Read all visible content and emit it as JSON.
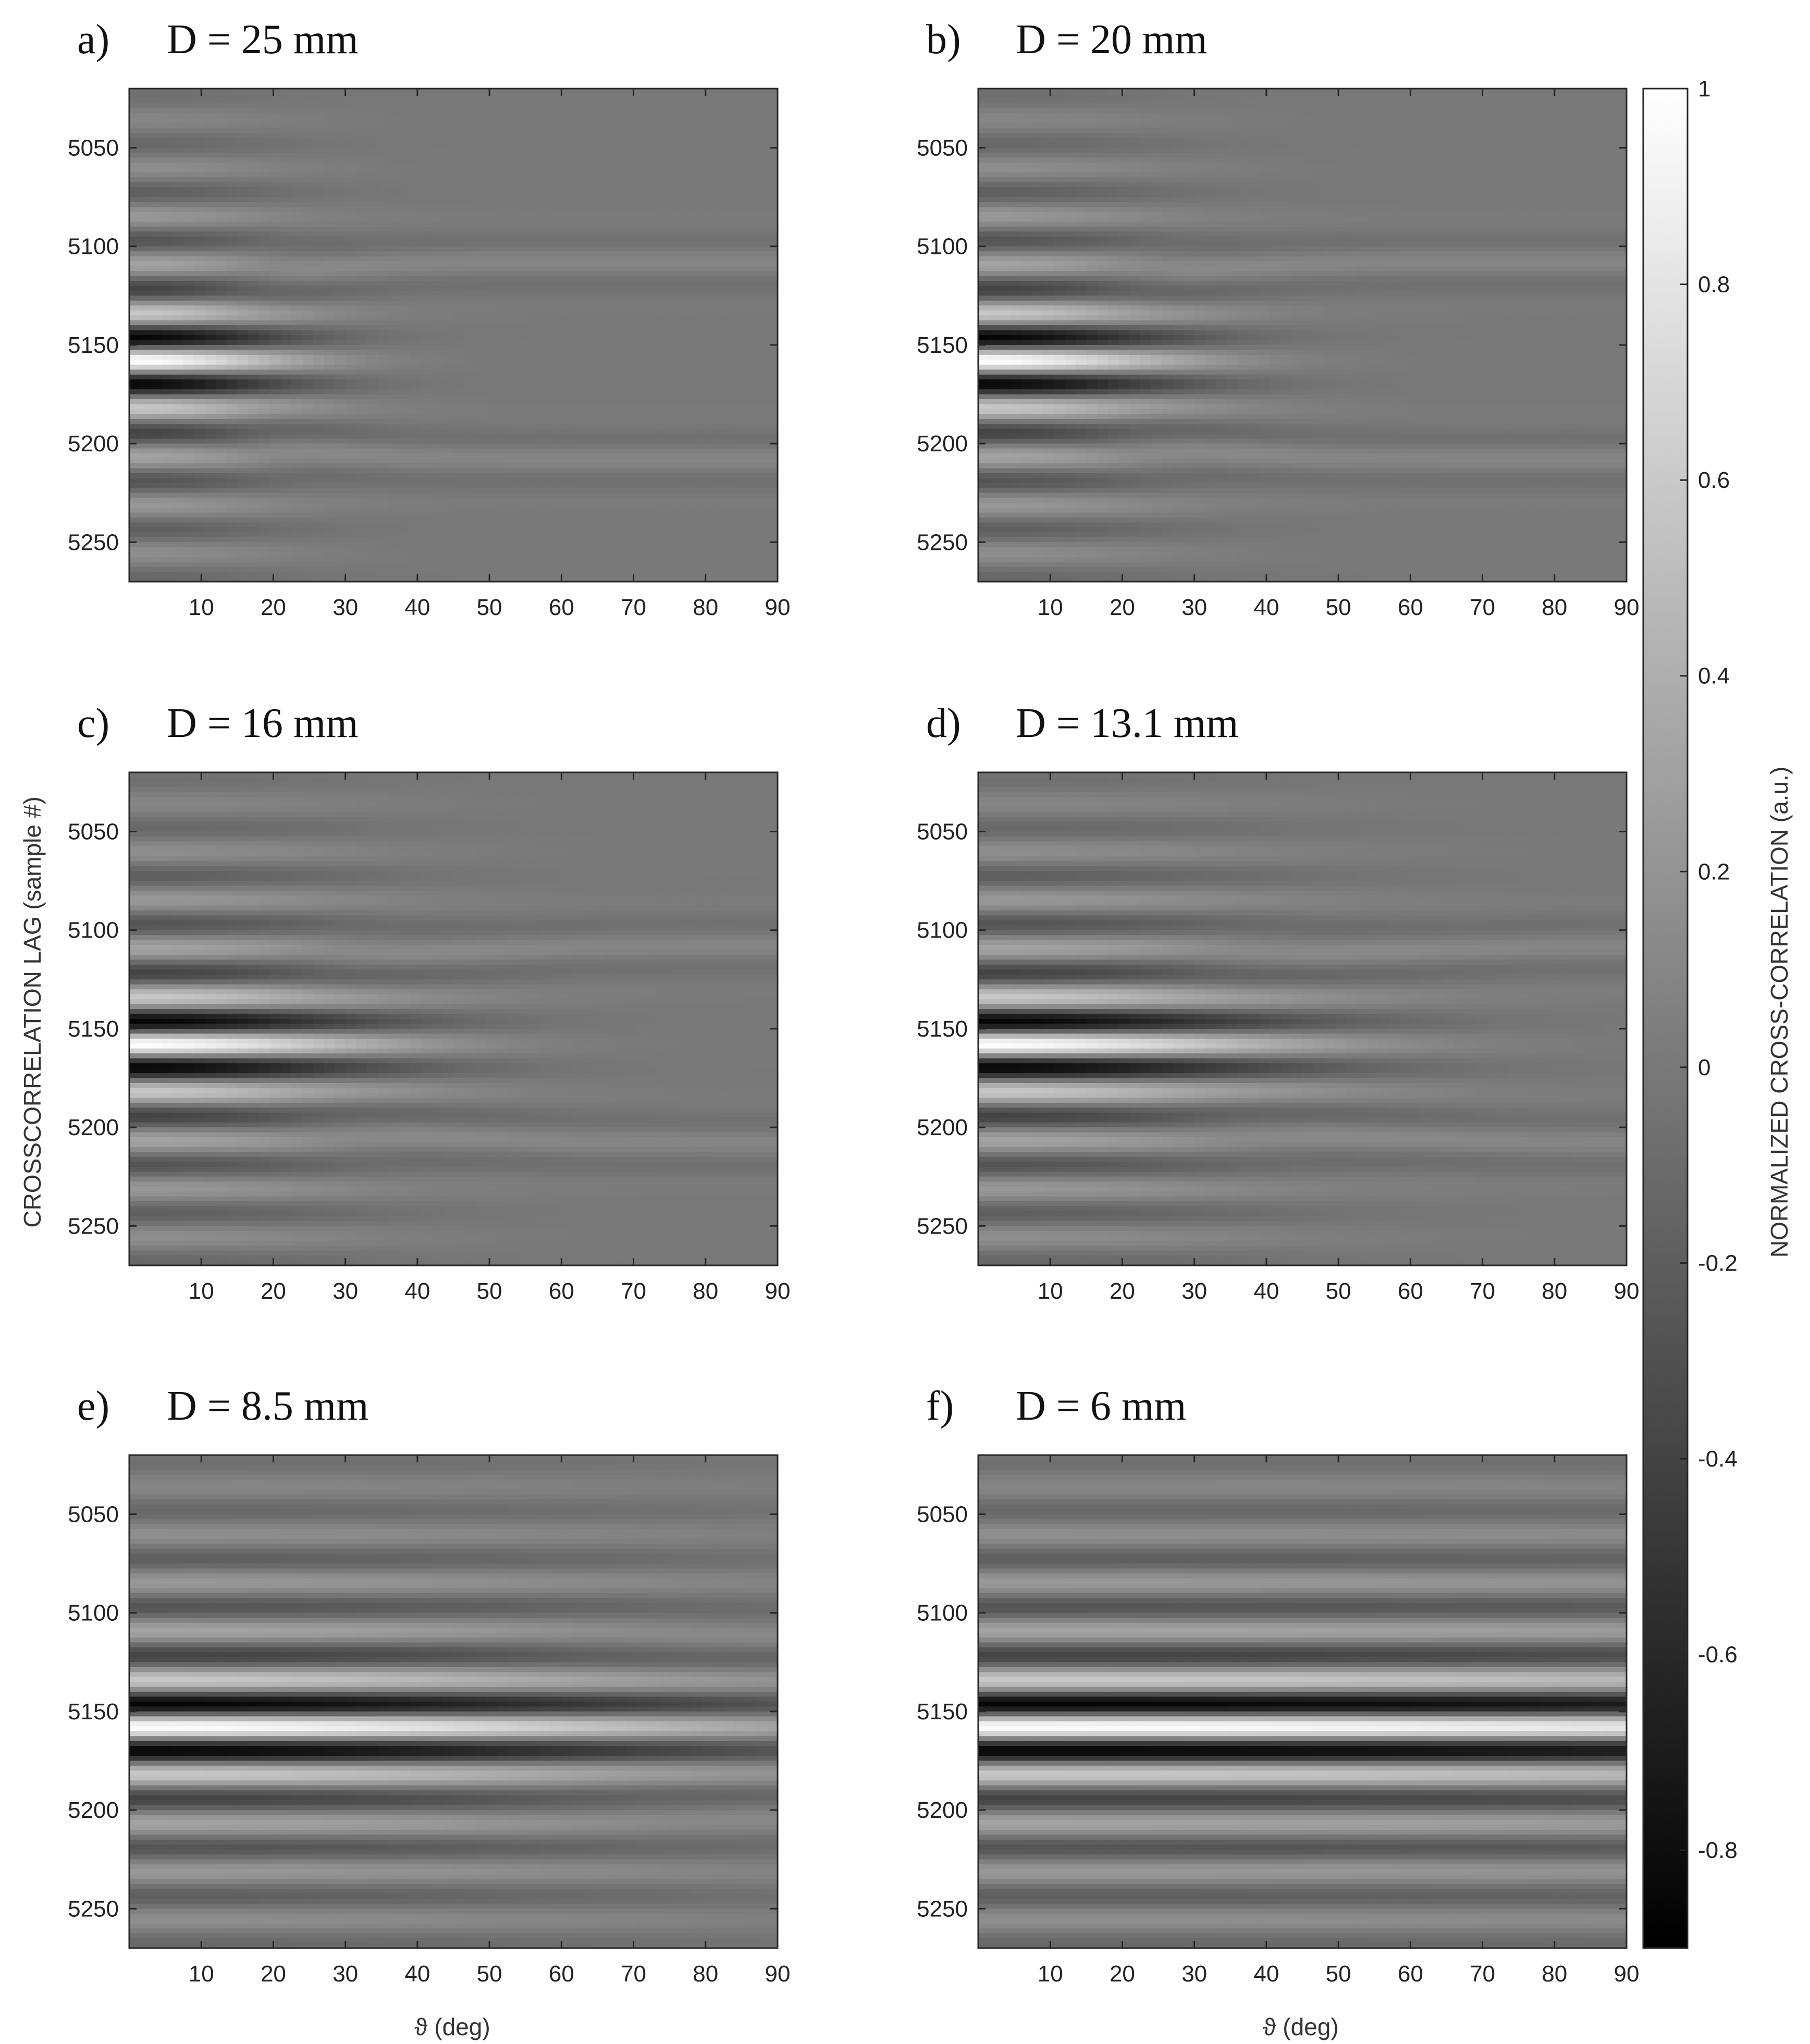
{
  "figure": {
    "shared_ylabel": "CROSSCORRELATION LAG (sample #)",
    "shared_xlabel": "ϑ (deg)",
    "colorbar": {
      "label": "NORMALIZED CROSS-CORRELATION (a.u.)",
      "range": [
        -0.9,
        1.0
      ],
      "ticks": [
        "1",
        "0.8",
        "0.6",
        "0.4",
        "0.2",
        "0",
        "-0.2",
        "-0.4",
        "-0.6",
        "-0.8"
      ],
      "tick_values": [
        1,
        0.8,
        0.6,
        0.4,
        0.2,
        0,
        -0.2,
        -0.4,
        -0.6,
        -0.8
      ],
      "colormap": "gray",
      "low_color": "#000000",
      "high_color": "#ffffff"
    }
  },
  "chart_data": [
    {
      "type": "heatmap",
      "panel": "a)",
      "title": "D = 25 mm",
      "x_range": [
        0,
        90
      ],
      "y_range": [
        5020,
        5270
      ],
      "xticks": [
        10,
        20,
        30,
        40,
        50,
        60,
        70,
        80,
        90
      ],
      "yticks": [
        5050,
        5100,
        5150,
        5200,
        5250
      ],
      "center_lag": 5158,
      "peak_value": 1.0,
      "focus_width_deg": 22
    },
    {
      "type": "heatmap",
      "panel": "b)",
      "title": "D = 20 mm",
      "x_range": [
        0,
        90
      ],
      "y_range": [
        5020,
        5270
      ],
      "xticks": [
        10,
        20,
        30,
        40,
        50,
        60,
        70,
        80,
        90
      ],
      "yticks": [
        5050,
        5100,
        5150,
        5200,
        5250
      ],
      "center_lag": 5158,
      "peak_value": 1.0,
      "focus_width_deg": 27
    },
    {
      "type": "heatmap",
      "panel": "c)",
      "title": "D = 16 mm",
      "x_range": [
        0,
        90
      ],
      "y_range": [
        5020,
        5270
      ],
      "xticks": [
        10,
        20,
        30,
        40,
        50,
        60,
        70,
        80,
        90
      ],
      "yticks": [
        5050,
        5100,
        5150,
        5200,
        5250
      ],
      "center_lag": 5158,
      "peak_value": 1.0,
      "focus_width_deg": 34
    },
    {
      "type": "heatmap",
      "panel": "d)",
      "title": "D = 13.1 mm",
      "x_range": [
        0,
        90
      ],
      "y_range": [
        5020,
        5270
      ],
      "xticks": [
        10,
        20,
        30,
        40,
        50,
        60,
        70,
        80,
        90
      ],
      "yticks": [
        5050,
        5100,
        5150,
        5200,
        5250
      ],
      "center_lag": 5158,
      "peak_value": 1.0,
      "focus_width_deg": 42
    },
    {
      "type": "heatmap",
      "panel": "e)",
      "title": "D = 8.5 mm",
      "x_range": [
        0,
        90
      ],
      "y_range": [
        5020,
        5270
      ],
      "xticks": [
        10,
        20,
        30,
        40,
        50,
        60,
        70,
        80,
        90
      ],
      "yticks": [
        5050,
        5100,
        5150,
        5200,
        5250
      ],
      "center_lag": 5158,
      "peak_value": 1.0,
      "focus_width_deg": 85
    },
    {
      "type": "heatmap",
      "panel": "f)",
      "title": "D = 6 mm",
      "x_range": [
        0,
        90
      ],
      "y_range": [
        5020,
        5270
      ],
      "xticks": [
        10,
        20,
        30,
        40,
        50,
        60,
        70,
        80,
        90
      ],
      "yticks": [
        5050,
        5100,
        5150,
        5200,
        5250
      ],
      "center_lag": 5158,
      "peak_value": 1.0,
      "focus_width_deg": 200
    }
  ]
}
